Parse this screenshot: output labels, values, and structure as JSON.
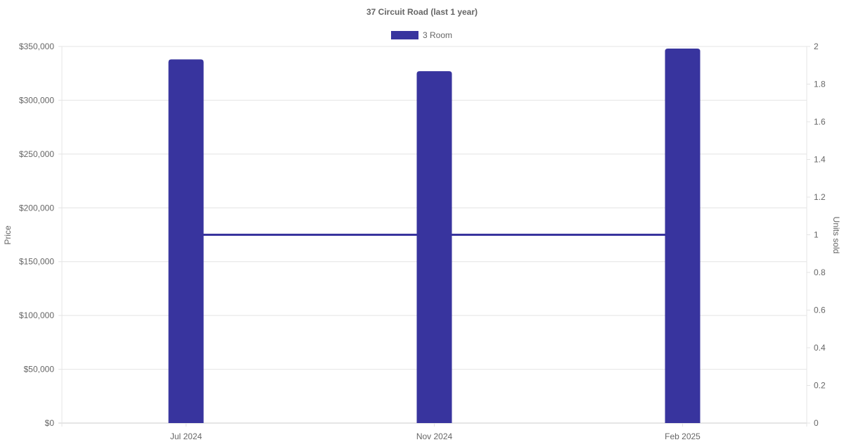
{
  "chart_data": {
    "type": "bar",
    "title": "37 Circuit Road (last 1 year)",
    "legend": {
      "position": "top",
      "entries": [
        {
          "name": "3 Room",
          "color": "#38349e"
        }
      ]
    },
    "categories": [
      "Jul 2024",
      "Nov 2024",
      "Feb 2025"
    ],
    "ylabel": "Price",
    "y2label": "Units sold",
    "ylim": [
      0,
      350000
    ],
    "y2lim": [
      0,
      2
    ],
    "yticks": [
      "$0",
      "$50,000",
      "$100,000",
      "$150,000",
      "$200,000",
      "$250,000",
      "$300,000",
      "$350,000"
    ],
    "y2ticks": [
      "0",
      "0.2",
      "0.4",
      "0.6",
      "0.8",
      "1",
      "1.2",
      "1.4",
      "1.6",
      "1.8",
      "2"
    ],
    "grid": true,
    "series": [
      {
        "name": "3 Room",
        "type": "bar",
        "axis": "price",
        "color": "#38349e",
        "values": [
          338000,
          327000,
          348000
        ]
      },
      {
        "type": "line",
        "axis": "units",
        "color": "#38349e",
        "values": [
          1,
          1,
          1
        ]
      }
    ]
  }
}
